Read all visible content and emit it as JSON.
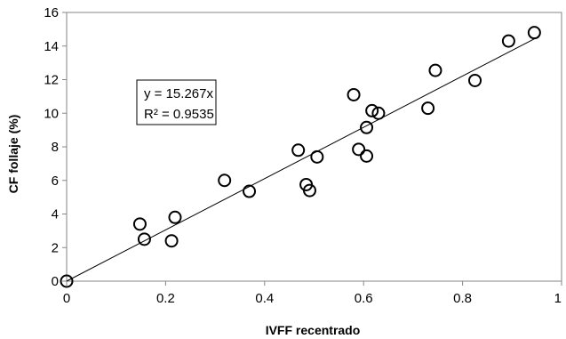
{
  "chart_data": {
    "type": "scatter",
    "xlabel": "IVFF recentrado",
    "ylabel": "CF follaje (%)",
    "xlim": [
      0,
      1
    ],
    "ylim": [
      0,
      16
    ],
    "xticks": [
      "0",
      "0.2",
      "0.4",
      "0.6",
      "0.8",
      "1"
    ],
    "yticks": [
      "0",
      "2",
      "4",
      "6",
      "8",
      "10",
      "12",
      "14",
      "16"
    ],
    "grid": false,
    "points": [
      {
        "x": 0.0,
        "y": 0.0
      },
      {
        "x": 0.148,
        "y": 3.4
      },
      {
        "x": 0.157,
        "y": 2.5
      },
      {
        "x": 0.212,
        "y": 2.4
      },
      {
        "x": 0.219,
        "y": 3.8
      },
      {
        "x": 0.319,
        "y": 6.0
      },
      {
        "x": 0.369,
        "y": 5.35
      },
      {
        "x": 0.468,
        "y": 7.8
      },
      {
        "x": 0.484,
        "y": 5.75
      },
      {
        "x": 0.491,
        "y": 5.4
      },
      {
        "x": 0.506,
        "y": 7.4
      },
      {
        "x": 0.58,
        "y": 11.1
      },
      {
        "x": 0.59,
        "y": 7.85
      },
      {
        "x": 0.606,
        "y": 9.15
      },
      {
        "x": 0.606,
        "y": 7.45
      },
      {
        "x": 0.617,
        "y": 10.15
      },
      {
        "x": 0.63,
        "y": 10.0
      },
      {
        "x": 0.73,
        "y": 10.3
      },
      {
        "x": 0.745,
        "y": 12.55
      },
      {
        "x": 0.825,
        "y": 11.95
      },
      {
        "x": 0.893,
        "y": 14.3
      },
      {
        "x": 0.945,
        "y": 14.8
      }
    ],
    "trendline": {
      "slope": 15.267,
      "x_range": [
        0,
        0.945
      ]
    },
    "annotation": [
      "y = 15.267x",
      "R² = 0.9535"
    ]
  }
}
